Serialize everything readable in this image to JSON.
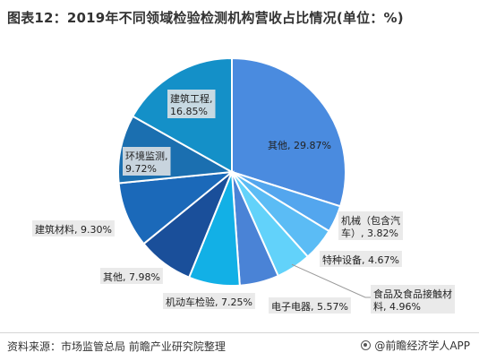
{
  "title": "图表12：2019年不同领域检验检测机构营收占比情况(单位：%)",
  "chart_data": {
    "type": "pie",
    "title": "图表12：2019年不同领域检验检测机构营收占比情况(单位：%)",
    "slices": [
      {
        "label": "其他, 29.87%",
        "value": 29.87,
        "color": "#4A8BDF"
      },
      {
        "label": "机械（包含汽车）, 3.82%",
        "value": 3.82,
        "color": "#53A6EE"
      },
      {
        "label": "特种设备, 4.67%",
        "value": 4.67,
        "color": "#5BBCF5"
      },
      {
        "label": "食品及食品接触材料, 4.96%",
        "value": 4.96,
        "color": "#62D2FA"
      },
      {
        "label": "电子电器, 5.57%",
        "value": 5.57,
        "color": "#4A83D6"
      },
      {
        "label": "机动车检验, 7.25%",
        "value": 7.25,
        "color": "#12B0E6"
      },
      {
        "label": "其他, 7.98%",
        "value": 7.98,
        "color": "#1A4F9A"
      },
      {
        "label": "建筑材料, 9.30%",
        "value": 9.3,
        "color": "#1B69B9"
      },
      {
        "label": "环境监测, 9.72%",
        "value": 9.72,
        "color": "#1B6FB0"
      },
      {
        "label": "建筑工程, 16.85%",
        "value": 16.85,
        "color": "#1490C8"
      }
    ]
  },
  "labels": [
    {
      "lines": [
        "其他, 29.87%"
      ],
      "box": false
    },
    {
      "lines": [
        "机械（包含汽",
        "车）, 3.82%"
      ],
      "box": true
    },
    {
      "lines": [
        "特种设备, 4.67%"
      ],
      "box": true
    },
    {
      "lines": [
        "食品及食品接触材",
        "料, 4.96%"
      ],
      "box": true
    },
    {
      "lines": [
        "电子电器, 5.57%"
      ],
      "box": true
    },
    {
      "lines": [
        "机动车检验, 7.25%"
      ],
      "box": true
    },
    {
      "lines": [
        "其他, 7.98%"
      ],
      "box": true
    },
    {
      "lines": [
        "建筑材料, 9.30%"
      ],
      "box": true
    },
    {
      "lines": [
        "环境监测,",
        "9.72%"
      ],
      "box": true
    },
    {
      "lines": [
        "建筑工程,",
        "16.85%"
      ],
      "box": true
    }
  ],
  "source": "资料来源：市场监管总局 前瞻产业研究院整理",
  "brand": "@前瞻经济学人APP"
}
